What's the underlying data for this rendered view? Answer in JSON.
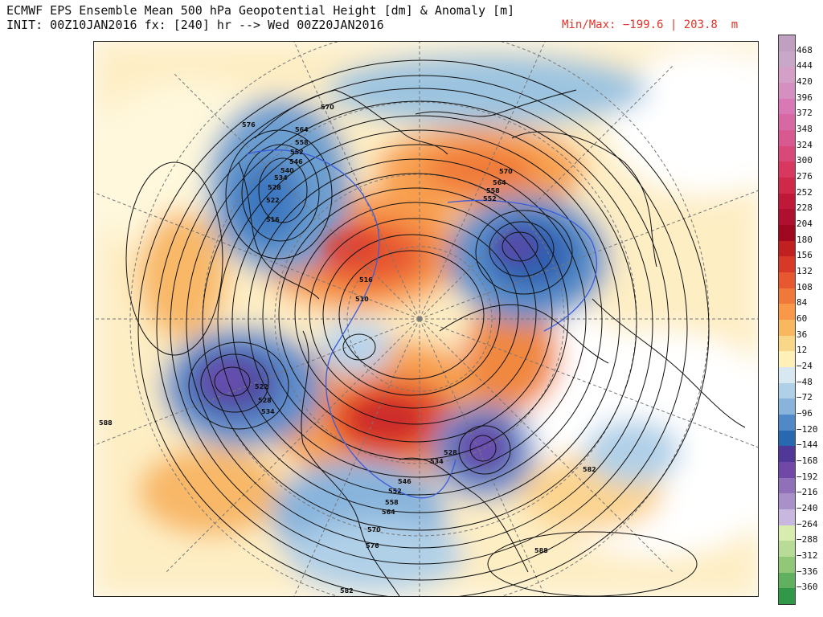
{
  "header": {
    "title": "ECMWF EPS Ensemble Mean 500 hPa Geopotential Height [dm] & Anomaly [m]",
    "init_line": "INIT: 00Z10JAN2016 fx: [240] hr --> Wed 00Z20JAN2016",
    "minmax": "Min/Max: −199.6 | 203.8  m"
  },
  "colorbar": {
    "levels": [
      "468",
      "444",
      "420",
      "396",
      "372",
      "348",
      "324",
      "300",
      "276",
      "252",
      "228",
      "204",
      "180",
      "156",
      "132",
      "108",
      "84",
      "60",
      "36",
      "12",
      "−24",
      "−48",
      "−72",
      "−96",
      "−120",
      "−144",
      "−168",
      "−192",
      "−216",
      "−240",
      "−264",
      "−288",
      "−312",
      "−336",
      "−360"
    ],
    "colors": [
      "#c8a8c8",
      "#d4a0c8",
      "#d690c0",
      "#d878b4",
      "#d868a4",
      "#d85890",
      "#d84878",
      "#d83860",
      "#d02848",
      "#c01838",
      "#b01030",
      "#a00820",
      "#c02020",
      "#d83828",
      "#e85830",
      "#f07838",
      "#f89848",
      "#f8b860",
      "#f8d888",
      "#fff0b8",
      "#d8e8f0",
      "#b0d0e8",
      "#88b4dc",
      "#5088c8",
      "#2868b0",
      "#503898",
      "#7048a8",
      "#9070b8",
      "#a890c8",
      "#c8b8e0",
      "#d8ecb0",
      "#b8dc98",
      "#90c878",
      "#60b060",
      "#309848"
    ]
  },
  "map_labels": [
    {
      "text": "570"
    },
    {
      "text": "576"
    },
    {
      "text": "564"
    },
    {
      "text": "558"
    },
    {
      "text": "552"
    },
    {
      "text": "546"
    },
    {
      "text": "540"
    },
    {
      "text": "534"
    },
    {
      "text": "528"
    },
    {
      "text": "522"
    },
    {
      "text": "516"
    },
    {
      "text": "510"
    },
    {
      "text": "516"
    },
    {
      "text": "570"
    },
    {
      "text": "564"
    },
    {
      "text": "558"
    },
    {
      "text": "552"
    },
    {
      "text": "522"
    },
    {
      "text": "528"
    },
    {
      "text": "534"
    },
    {
      "text": "588"
    },
    {
      "text": "528"
    },
    {
      "text": "534"
    },
    {
      "text": "546"
    },
    {
      "text": "552"
    },
    {
      "text": "558"
    },
    {
      "text": "564"
    },
    {
      "text": "570"
    },
    {
      "text": "576"
    },
    {
      "text": "582"
    },
    {
      "text": "582"
    },
    {
      "text": "588"
    }
  ]
}
